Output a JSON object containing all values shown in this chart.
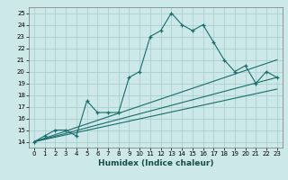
{
  "title": "",
  "xlabel": "Humidex (Indice chaleur)",
  "ylabel": "",
  "bg_color": "#cce8e8",
  "grid_color": "#aad0d0",
  "line_color": "#1a6b6b",
  "xlim": [
    -0.5,
    23.5
  ],
  "ylim": [
    13.5,
    25.5
  ],
  "xticks": [
    0,
    1,
    2,
    3,
    4,
    5,
    6,
    7,
    8,
    9,
    10,
    11,
    12,
    13,
    14,
    15,
    16,
    17,
    18,
    19,
    20,
    21,
    22,
    23
  ],
  "yticks": [
    14,
    15,
    16,
    17,
    18,
    19,
    20,
    21,
    22,
    23,
    24,
    25
  ],
  "series1_x": [
    0,
    1,
    2,
    3,
    4,
    5,
    6,
    7,
    8,
    9,
    10,
    11,
    12,
    13,
    14,
    15,
    16,
    17,
    18,
    19,
    20,
    21,
    22,
    23
  ],
  "series1_y": [
    14,
    14.5,
    15,
    15,
    14.5,
    17.5,
    16.5,
    16.5,
    16.5,
    19.5,
    20,
    23,
    23.5,
    25,
    24,
    23.5,
    24,
    22.5,
    21,
    20,
    20.5,
    19,
    20,
    19.5
  ],
  "series2_x": [
    0,
    23
  ],
  "series2_y": [
    14,
    19.5
  ],
  "series3_x": [
    0,
    23
  ],
  "series3_y": [
    14,
    18.5
  ],
  "series4_x": [
    0,
    23
  ],
  "series4_y": [
    14,
    21
  ]
}
